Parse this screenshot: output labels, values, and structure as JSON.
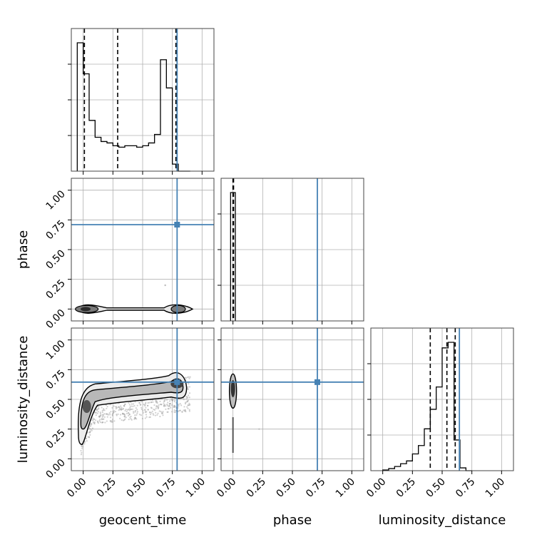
{
  "chart_data": {
    "type": "corner",
    "parameters": [
      "geocent_time",
      "phase",
      "luminosity_distance"
    ],
    "axis_labels": {
      "x": [
        "geocent_time",
        "phase",
        "luminosity_distance"
      ],
      "y": [
        "",
        "phase",
        "luminosity_distance"
      ]
    },
    "tick_labels": [
      "0.00",
      "0.25",
      "0.50",
      "0.75",
      "1.00"
    ],
    "truths": {
      "geocent_time": 0.79,
      "phase": 0.71,
      "luminosity_distance": 0.645
    },
    "truth_color": "#4682b4",
    "grid": true,
    "marginals": {
      "geocent_time": {
        "bin_edges": [
          -0.05,
          0.0,
          0.05,
          0.1,
          0.15,
          0.2,
          0.25,
          0.3,
          0.35,
          0.4,
          0.45,
          0.5,
          0.55,
          0.6,
          0.65,
          0.7,
          0.75,
          0.8,
          0.85,
          0.9
        ],
        "counts": [
          0.91,
          0.69,
          0.36,
          0.24,
          0.21,
          0.2,
          0.18,
          0.17,
          0.18,
          0.18,
          0.17,
          0.18,
          0.2,
          0.26,
          0.79,
          0.59,
          0.05,
          0.0,
          0.0
        ],
        "quantiles": [
          0.01,
          0.29,
          0.78
        ]
      },
      "phase": {
        "bin_edges": [
          -0.02,
          0.0,
          0.02
        ],
        "counts": [
          1.0,
          1.0
        ],
        "quantiles": [
          0.0,
          0.005
        ]
      },
      "luminosity_distance": {
        "bin_edges": [
          0.0,
          0.05,
          0.1,
          0.15,
          0.2,
          0.25,
          0.3,
          0.35,
          0.4,
          0.45,
          0.5,
          0.55,
          0.6,
          0.65,
          0.7,
          0.75
        ],
        "counts": [
          0.005,
          0.015,
          0.03,
          0.05,
          0.07,
          0.12,
          0.18,
          0.3,
          0.44,
          0.6,
          0.88,
          0.92,
          0.22,
          0.02,
          0.0
        ],
        "quantiles": [
          0.4,
          0.54,
          0.61
        ]
      }
    }
  }
}
